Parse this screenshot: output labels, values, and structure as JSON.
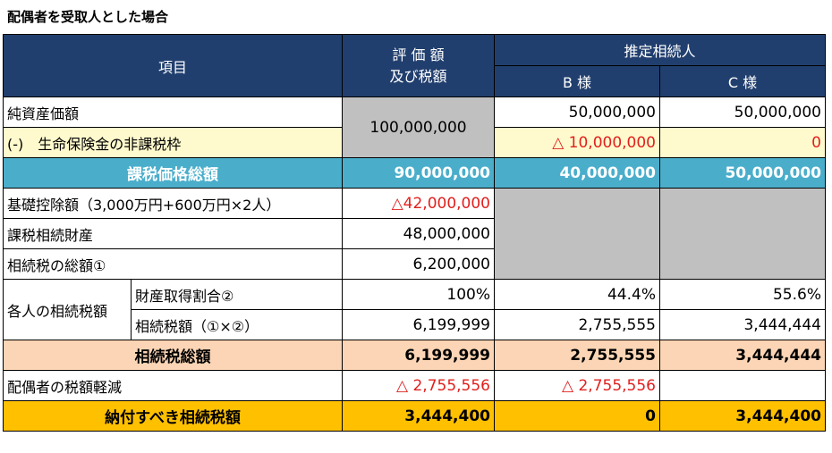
{
  "title": "配偶者を受取人とした場合",
  "header": {
    "item": "項目",
    "valuation_line1": "評 価 額",
    "valuation_line2": "及び税額",
    "heirs": "推定相続人",
    "heir_b": "B 様",
    "heir_c": "C 様"
  },
  "rows": {
    "net_assets": {
      "label": "純資産価額",
      "value": "100,000,000",
      "b": "50,000,000",
      "c": "50,000,000"
    },
    "insurance": {
      "label": "(-)　生命保険金の非課税枠",
      "b": "△ 10,000,000",
      "c": "0"
    },
    "taxable_total": {
      "label": "課税価格総額",
      "value": "90,000,000",
      "b": "40,000,000",
      "c": "50,000,000"
    },
    "basic_deduction": {
      "label": "基礎控除額（3,000万円+600万円×2人）",
      "value": "△42,000,000"
    },
    "taxable_inheritance": {
      "label": "課税相続財産",
      "value": "48,000,000"
    },
    "total_tax": {
      "label": "相続税の総額①",
      "value": "6,200,000"
    },
    "each_tax": {
      "label": "各人の相続税額"
    },
    "share": {
      "label": "財産取得割合②",
      "value": "100%",
      "b": "44.4%",
      "c": "55.6%"
    },
    "tax_amount": {
      "label": "相続税額（①×②）",
      "value": "6,199,999",
      "b": "2,755,555",
      "c": "3,444,444"
    },
    "tax_sum": {
      "label": "相続税総額",
      "value": "6,199,999",
      "b": "2,755,555",
      "c": "3,444,444"
    },
    "spouse_reduction": {
      "label": "配偶者の税額軽減",
      "value": "△ 2,755,556",
      "b": "△ 2,755,556",
      "c": ""
    },
    "payable": {
      "label": "納付すべき相続税額",
      "value": "3,444,400",
      "b": "0",
      "c": "3,444,400"
    }
  }
}
